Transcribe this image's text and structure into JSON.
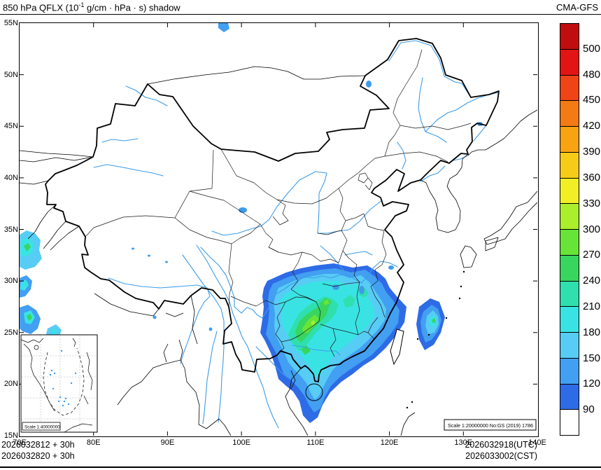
{
  "header": {
    "title_prefix": "850 hPa QFLX (10",
    "title_exponent": "-1",
    "title_suffix": " g/cm · hPa · s) shadow",
    "model": "CMA-GFS"
  },
  "axes": {
    "lat_labels": [
      "55N",
      "50N",
      "45N",
      "40N",
      "35N",
      "30N",
      "25N",
      "20N",
      "15N"
    ],
    "lon_labels": [
      "70E",
      "80E",
      "90E",
      "100E",
      "110E",
      "120E",
      "130E",
      "140E"
    ]
  },
  "colorbar": {
    "labels_top_to_bottom": [
      "500",
      "480",
      "450",
      "420",
      "390",
      "360",
      "330",
      "300",
      "270",
      "240",
      "210",
      "180",
      "150",
      "120",
      "90"
    ],
    "colors_bottom_to_top": [
      "#ffffff",
      "#2e6be6",
      "#429ff2",
      "#57ccf5",
      "#3ae3e3",
      "#2fdfae",
      "#38d55f",
      "#68e438",
      "#aaee2c",
      "#f2ee26",
      "#f6cc18",
      "#f7a312",
      "#f37a14",
      "#ee4418",
      "#e31414",
      "#c00d10"
    ]
  },
  "map": {
    "scale_text": "Scale 1:20000000 No:GS (2019) 1786",
    "inset_scale_text": "Scale 1:40000000",
    "river_color": "#3d9ce8",
    "shaded_field": {
      "variable": "850 hPa moisture flux (QFLX) shadow",
      "main_region": "southern China, roughly 103E-122E / 17N-31N, peak values 240-300 over Guizhou-Guangxi-Hunan",
      "secondary_regions": [
        "ocean east of Taiwan ~124E-128E / 23N-28N",
        "western map edge 70E-76E / 24N-34N"
      ]
    }
  },
  "footer": {
    "left_lines": [
      "2026032812 + 30h",
      "2026032820 + 30h"
    ],
    "right_lines": [
      "2026032918(UTC)",
      "2026033002(CST)"
    ]
  }
}
